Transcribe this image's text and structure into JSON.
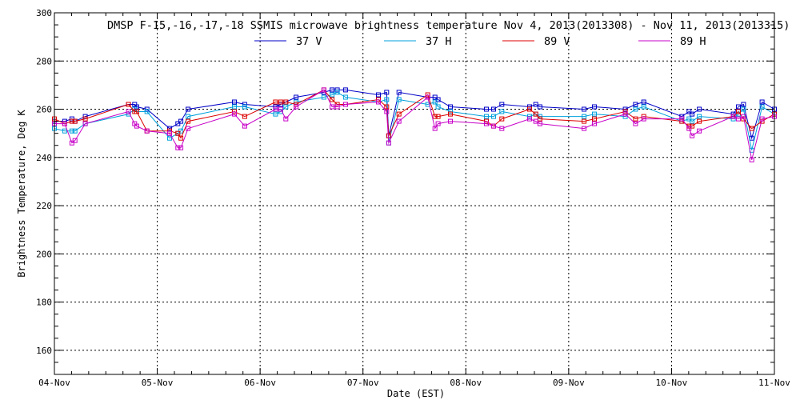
{
  "chart_data": {
    "type": "line",
    "title": "DMSP F-15,-16,-17,-18 SSMIS microwave brightness temperature Nov  4, 2013(2013308) - Nov 11, 2013(2013315)",
    "xlabel": "Date (EST)",
    "ylabel": "Brightness Temperature, Deg K",
    "xlim": [
      0,
      7
    ],
    "ylim": [
      150,
      300
    ],
    "x_ticks": [
      0,
      1,
      2,
      3,
      4,
      5,
      6,
      7
    ],
    "x_tick_labels": [
      "04-Nov",
      "05-Nov",
      "06-Nov",
      "07-Nov",
      "08-Nov",
      "09-Nov",
      "10-Nov",
      "11-Nov"
    ],
    "y_ticks": [
      160,
      180,
      200,
      220,
      240,
      260,
      280,
      300
    ],
    "y_tick_labels": [
      "160",
      "180",
      "200",
      "220",
      "240",
      "260",
      "280",
      "300"
    ],
    "grid": true,
    "legend_position": "top",
    "x": [
      0.0,
      0.1,
      0.17,
      0.2,
      0.3,
      0.72,
      0.78,
      0.8,
      0.9,
      1.12,
      1.2,
      1.23,
      1.3,
      1.75,
      1.85,
      2.15,
      2.2,
      2.25,
      2.35,
      2.62,
      2.7,
      2.75,
      2.83,
      3.15,
      3.23,
      3.25,
      3.35,
      3.63,
      3.7,
      3.73,
      3.85,
      4.2,
      4.27,
      4.35,
      4.62,
      4.68,
      4.72,
      5.15,
      5.25,
      5.55,
      5.65,
      5.73,
      6.1,
      6.17,
      6.2,
      6.27,
      6.6,
      6.65,
      6.7,
      6.78,
      6.88,
      7.0
    ],
    "series": [
      {
        "name": "37 V",
        "color": "#0000c8",
        "values": [
          255,
          255,
          256,
          255,
          257,
          262,
          262,
          261,
          260,
          252,
          254,
          255,
          260,
          263,
          262,
          261,
          262,
          263,
          265,
          267,
          268,
          268,
          268,
          266,
          267,
          249,
          267,
          265,
          265,
          264,
          261,
          260,
          260,
          262,
          261,
          262,
          261,
          260,
          261,
          260,
          262,
          263,
          257,
          259,
          258,
          260,
          258,
          261,
          262,
          248,
          263,
          260
        ]
      },
      {
        "name": "37 H",
        "color": "#00a0dc",
        "values": [
          252,
          251,
          251,
          251,
          254,
          258,
          260,
          259,
          259,
          248,
          250,
          251,
          257,
          261,
          261,
          258,
          259,
          261,
          263,
          265,
          266,
          267,
          265,
          263,
          264,
          246,
          264,
          262,
          263,
          261,
          259,
          257,
          257,
          259,
          257,
          258,
          257,
          257,
          258,
          257,
          260,
          261,
          255,
          256,
          255,
          257,
          256,
          258,
          260,
          243,
          261,
          258
        ]
      },
      {
        "name": "89 V",
        "color": "#dc0000",
        "values": [
          256,
          254,
          255,
          255,
          256,
          262,
          259,
          259,
          251,
          251,
          250,
          248,
          255,
          259,
          257,
          263,
          263,
          263,
          262,
          268,
          264,
          262,
          262,
          264,
          261,
          249,
          258,
          266,
          257,
          257,
          258,
          255,
          253,
          256,
          260,
          258,
          256,
          255,
          256,
          259,
          256,
          257,
          255,
          253,
          253,
          255,
          257,
          259,
          256,
          252,
          255,
          258
        ]
      },
      {
        "name": "89 H",
        "color": "#c800c8",
        "values": [
          254,
          254,
          246,
          247,
          254,
          259,
          254,
          253,
          251,
          250,
          244,
          244,
          252,
          258,
          253,
          260,
          260,
          256,
          261,
          268,
          261,
          261,
          262,
          263,
          259,
          246,
          255,
          265,
          252,
          254,
          255,
          254,
          253,
          252,
          256,
          255,
          254,
          252,
          254,
          258,
          254,
          256,
          256,
          252,
          249,
          251,
          257,
          256,
          257,
          239,
          256,
          257
        ]
      }
    ]
  }
}
